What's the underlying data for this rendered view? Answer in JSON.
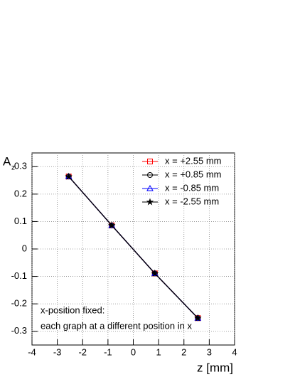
{
  "chart_data": {
    "type": "line",
    "xlabel": "z [mm]",
    "ylabel": "A",
    "ylabel_subscript": "z",
    "series": [
      {
        "name": "x = +2.55 mm",
        "color": "#ff0000",
        "marker": "square",
        "x": [
          -2.55,
          -0.85,
          0.85,
          2.55
        ],
        "values": [
          0.264,
          0.086,
          -0.089,
          -0.252
        ]
      },
      {
        "name": "x = +0.85 mm",
        "color": "#000000",
        "marker": "circle",
        "x": [
          -2.55,
          -0.85,
          0.85,
          2.55
        ],
        "values": [
          0.264,
          0.086,
          -0.089,
          -0.252
        ]
      },
      {
        "name": "x = -0.85 mm",
        "color": "#0000ff",
        "marker": "triangle",
        "x": [
          -2.55,
          -0.85,
          0.85,
          2.55
        ],
        "values": [
          0.264,
          0.086,
          -0.089,
          -0.252
        ]
      },
      {
        "name": "x = -2.55 mm",
        "color": "#000000",
        "marker": "star",
        "x": [
          -2.55,
          -0.85,
          0.85,
          2.55
        ],
        "values": [
          0.264,
          0.086,
          -0.089,
          -0.252
        ]
      }
    ],
    "xlim": [
      -4,
      4
    ],
    "xticks": [
      -4,
      -3,
      -2,
      -1,
      0,
      1,
      2,
      3,
      4
    ],
    "ylim": [
      -0.35,
      0.35
    ],
    "yticks": [
      -0.3,
      -0.2,
      -0.1,
      0,
      0.1,
      0.2,
      0.3
    ],
    "grid": true,
    "legend": "upper right",
    "annotations": [
      "x-position fixed:",
      "each graph at a different position in x"
    ]
  }
}
